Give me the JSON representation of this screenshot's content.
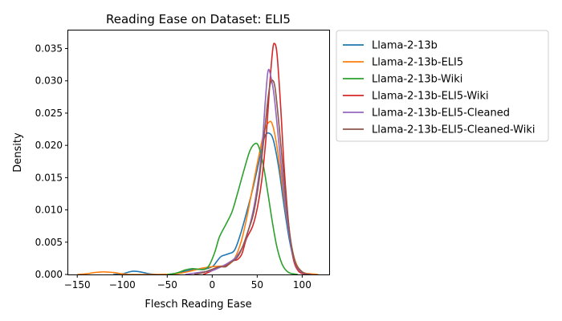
{
  "chart_data": {
    "type": "line",
    "title": "Reading Ease on Dataset: ELI5",
    "xlabel": "Flesch Reading Ease",
    "ylabel": "Density",
    "xlim": [
      -160,
      130
    ],
    "ylim": [
      0,
      0.0378
    ],
    "xticks": [
      -150,
      -100,
      -50,
      0,
      50,
      100
    ],
    "xtick_labels": [
      "−150",
      "−100",
      "−50",
      "0",
      "50",
      "100"
    ],
    "yticks": [
      0,
      0.005,
      0.01,
      0.015,
      0.02,
      0.025,
      0.03,
      0.035
    ],
    "ytick_labels": [
      "0.000",
      "0.005",
      "0.010",
      "0.015",
      "0.020",
      "0.025",
      "0.030",
      "0.035"
    ],
    "grid": false,
    "legend_position": "outside-right",
    "series": [
      {
        "name": "Llama-2-13b",
        "color": "#1f77b4",
        "points": [
          [
            -110,
            0
          ],
          [
            -100,
            0.0001
          ],
          [
            -92,
            0.0004
          ],
          [
            -87,
            0.0005
          ],
          [
            -80,
            0.0004
          ],
          [
            -70,
            0.0001
          ],
          [
            -60,
            0
          ],
          [
            -50,
            0
          ],
          [
            -40,
            0.0002
          ],
          [
            -30,
            0.0005
          ],
          [
            -20,
            0.0008
          ],
          [
            -10,
            0.0008
          ],
          [
            0,
            0.0012
          ],
          [
            5,
            0.002
          ],
          [
            10,
            0.0028
          ],
          [
            18,
            0.0032
          ],
          [
            25,
            0.0038
          ],
          [
            32,
            0.0065
          ],
          [
            38,
            0.0095
          ],
          [
            45,
            0.0132
          ],
          [
            52,
            0.0175
          ],
          [
            58,
            0.0212
          ],
          [
            63,
            0.0219
          ],
          [
            68,
            0.0208
          ],
          [
            74,
            0.0165
          ],
          [
            80,
            0.0105
          ],
          [
            86,
            0.0052
          ],
          [
            92,
            0.0018
          ],
          [
            100,
            0.0003
          ],
          [
            110,
            0
          ]
        ]
      },
      {
        "name": "Llama-2-13b-ELI5",
        "color": "#ff7f0e",
        "points": [
          [
            -150,
            0
          ],
          [
            -140,
            0.0001
          ],
          [
            -130,
            0.0003
          ],
          [
            -120,
            0.0004
          ],
          [
            -110,
            0.0003
          ],
          [
            -100,
            0.0001
          ],
          [
            -90,
            0
          ],
          [
            -60,
            0
          ],
          [
            -40,
            0.0001
          ],
          [
            -25,
            0.0005
          ],
          [
            -10,
            0.001
          ],
          [
            0,
            0.0012
          ],
          [
            10,
            0.0013
          ],
          [
            18,
            0.0015
          ],
          [
            25,
            0.0025
          ],
          [
            32,
            0.005
          ],
          [
            38,
            0.0085
          ],
          [
            45,
            0.0135
          ],
          [
            52,
            0.0185
          ],
          [
            58,
            0.0222
          ],
          [
            63,
            0.0236
          ],
          [
            67,
            0.0232
          ],
          [
            72,
            0.0198
          ],
          [
            78,
            0.0138
          ],
          [
            85,
            0.0068
          ],
          [
            92,
            0.0022
          ],
          [
            100,
            0.0004
          ],
          [
            110,
            0.0001
          ],
          [
            118,
            0
          ]
        ]
      },
      {
        "name": "Llama-2-13b-Wiki",
        "color": "#2ca02c",
        "points": [
          [
            -50,
            0
          ],
          [
            -40,
            0.0002
          ],
          [
            -30,
            0.0007
          ],
          [
            -22,
            0.0009
          ],
          [
            -15,
            0.0008
          ],
          [
            -8,
            0.0008
          ],
          [
            -3,
            0.0015
          ],
          [
            3,
            0.0035
          ],
          [
            8,
            0.0058
          ],
          [
            15,
            0.0077
          ],
          [
            22,
            0.0097
          ],
          [
            28,
            0.0125
          ],
          [
            35,
            0.016
          ],
          [
            42,
            0.0192
          ],
          [
            48,
            0.0203
          ],
          [
            52,
            0.0197
          ],
          [
            57,
            0.0168
          ],
          [
            62,
            0.0125
          ],
          [
            67,
            0.008
          ],
          [
            72,
            0.0042
          ],
          [
            78,
            0.0015
          ],
          [
            85,
            0.0003
          ],
          [
            95,
            0
          ]
        ]
      },
      {
        "name": "Llama-2-13b-ELI5-Wiki",
        "color": "#d62728",
        "points": [
          [
            -10,
            0
          ],
          [
            -3,
            0.0004
          ],
          [
            3,
            0.0008
          ],
          [
            10,
            0.0012
          ],
          [
            17,
            0.0015
          ],
          [
            22,
            0.0021
          ],
          [
            28,
            0.0023
          ],
          [
            33,
            0.0032
          ],
          [
            38,
            0.0055
          ],
          [
            45,
            0.0075
          ],
          [
            50,
            0.0102
          ],
          [
            55,
            0.0145
          ],
          [
            60,
            0.0215
          ],
          [
            64,
            0.0295
          ],
          [
            67,
            0.0345
          ],
          [
            69,
            0.0358
          ],
          [
            72,
            0.0342
          ],
          [
            76,
            0.0262
          ],
          [
            80,
            0.0165
          ],
          [
            85,
            0.0078
          ],
          [
            90,
            0.0025
          ],
          [
            96,
            0.0005
          ],
          [
            104,
            0
          ]
        ]
      },
      {
        "name": "Llama-2-13b-ELI5-Cleaned",
        "color": "#9467bd",
        "points": [
          [
            -30,
            0
          ],
          [
            -20,
            0.0002
          ],
          [
            -10,
            0.0004
          ],
          [
            0,
            0.0006
          ],
          [
            10,
            0.0012
          ],
          [
            18,
            0.0018
          ],
          [
            25,
            0.0025
          ],
          [
            32,
            0.0038
          ],
          [
            38,
            0.0058
          ],
          [
            45,
            0.0095
          ],
          [
            50,
            0.0135
          ],
          [
            55,
            0.019
          ],
          [
            59,
            0.0268
          ],
          [
            62,
            0.0315
          ],
          [
            65,
            0.0308
          ],
          [
            69,
            0.0275
          ],
          [
            74,
            0.0205
          ],
          [
            80,
            0.0125
          ],
          [
            86,
            0.0058
          ],
          [
            92,
            0.0018
          ],
          [
            100,
            0.0003
          ],
          [
            110,
            0
          ]
        ]
      },
      {
        "name": "Llama-2-13b-ELI5-Cleaned-Wiki",
        "color": "#8c564b",
        "points": [
          [
            -20,
            0
          ],
          [
            -10,
            0.0003
          ],
          [
            0,
            0.0008
          ],
          [
            8,
            0.0012
          ],
          [
            15,
            0.0012
          ],
          [
            20,
            0.0018
          ],
          [
            27,
            0.0025
          ],
          [
            33,
            0.004
          ],
          [
            40,
            0.0068
          ],
          [
            46,
            0.0095
          ],
          [
            52,
            0.0145
          ],
          [
            57,
            0.0205
          ],
          [
            61,
            0.026
          ],
          [
            64,
            0.0292
          ],
          [
            67,
            0.0301
          ],
          [
            70,
            0.0288
          ],
          [
            74,
            0.0235
          ],
          [
            80,
            0.0145
          ],
          [
            86,
            0.0065
          ],
          [
            92,
            0.002
          ],
          [
            100,
            0.0004
          ],
          [
            108,
            0
          ]
        ]
      }
    ]
  }
}
